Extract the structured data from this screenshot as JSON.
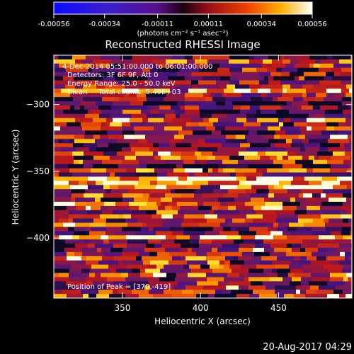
{
  "colorbar": {
    "tick_labels": [
      "-0.00056",
      "-0.00034",
      "-0.00011",
      "0.00011",
      "0.00034",
      "0.00056"
    ],
    "tick_values": [
      -0.00056,
      -0.00034,
      -0.00011,
      0.00011,
      0.00034,
      0.00056
    ],
    "unit_label": "(photons cm⁻² s⁻¹ asec⁻²)",
    "range": [
      -0.00056,
      0.00056
    ]
  },
  "chart_data": {
    "type": "heatmap",
    "title": "Reconstructed RHESSI Image",
    "xlabel": "Heliocentric X (arcsec)",
    "ylabel": "Heliocentric Y (arcsec)",
    "xlim": [
      306,
      497
    ],
    "ylim": [
      -445,
      -263
    ],
    "x_ticks": [
      350,
      400,
      450
    ],
    "x_tick_labels": [
      "350",
      "400",
      "450"
    ],
    "y_ticks": [
      -300,
      -350,
      -400
    ],
    "y_tick_labels": [
      "−300",
      "−350",
      "−400"
    ],
    "colormap": "blue-purple-red-yellow-white",
    "peak": [
      370,
      -419
    ],
    "annotations": [
      "4-Dec-2014 05:51:00.000 to 06:01:00.000",
      "Detectors: 3F 6F 9F, Att 0",
      "Energy Range: 25.0 - 50.0 keV",
      "Clean     Total counts: 5.49E+03",
      "Position of Peak = [370,-419]"
    ]
  },
  "footer_timestamp": "20-Aug-2017 04:29"
}
